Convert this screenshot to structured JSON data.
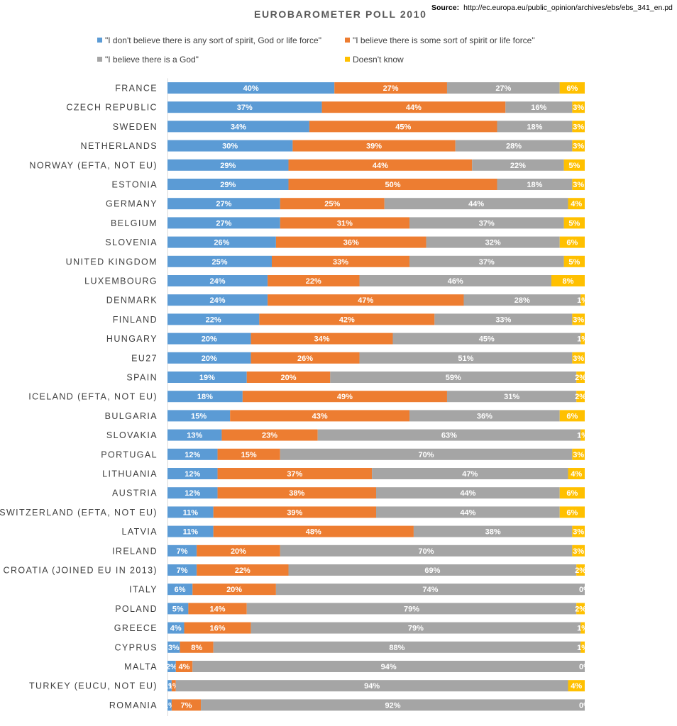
{
  "chart_data": {
    "type": "stacked-bar-horizontal",
    "title": "EUROBAROMETER POLL 2010",
    "source_label": "Source:",
    "source_url": "http://ec.europa.eu/public_opinion/archives/ebs/ebs_341_en.pd",
    "xlim": [
      0,
      100
    ],
    "value_suffix": "%",
    "categories": [
      "FRANCE",
      "CZECH REPUBLIC",
      "SWEDEN",
      "NETHERLANDS",
      "NORWAY (EFTA, NOT EU)",
      "ESTONIA",
      "GERMANY",
      "BELGIUM",
      "SLOVENIA",
      "UNITED KINGDOM",
      "LUXEMBOURG",
      "DENMARK",
      "FINLAND",
      "HUNGARY",
      "EU27",
      "SPAIN",
      "ICELAND (EFTA, NOT EU)",
      "BULGARIA",
      "SLOVAKIA",
      "PORTUGAL",
      "LITHUANIA",
      "AUSTRIA",
      "SWITZERLAND (EFTA, NOT EU)",
      "LATVIA",
      "IRELAND",
      "CROATIA (JOINED EU IN 2013)",
      "ITALY",
      "POLAND",
      "GREECE",
      "CYPRUS",
      "MALTA",
      "TURKEY (EUCU, NOT EU)",
      "ROMANIA"
    ],
    "series": [
      {
        "name": "\"I don't believe there is any sort of spirit, God or life force\"",
        "color": "#5b9bd5",
        "values": [
          40,
          37,
          34,
          30,
          29,
          29,
          27,
          27,
          26,
          25,
          24,
          24,
          22,
          20,
          20,
          19,
          18,
          15,
          13,
          12,
          12,
          12,
          11,
          11,
          7,
          7,
          6,
          5,
          4,
          3,
          2,
          1,
          1
        ]
      },
      {
        "name": "\"I believe there is some sort of spirit or life force\"",
        "color": "#ed7d31",
        "values": [
          27,
          44,
          45,
          39,
          44,
          50,
          25,
          31,
          36,
          33,
          22,
          47,
          42,
          34,
          26,
          20,
          49,
          43,
          23,
          15,
          37,
          38,
          39,
          48,
          20,
          22,
          20,
          14,
          16,
          8,
          4,
          1,
          7
        ]
      },
      {
        "name": "\"I believe there is a God\"",
        "color": "#a5a5a5",
        "values": [
          27,
          16,
          18,
          28,
          22,
          18,
          44,
          37,
          32,
          37,
          46,
          28,
          33,
          45,
          51,
          59,
          31,
          36,
          63,
          70,
          47,
          44,
          44,
          38,
          70,
          69,
          74,
          79,
          79,
          88,
          94,
          94,
          92
        ]
      },
      {
        "name": "Doesn't know",
        "color": "#ffc000",
        "values": [
          6,
          3,
          3,
          3,
          5,
          3,
          4,
          5,
          6,
          5,
          8,
          1,
          3,
          1,
          3,
          2,
          2,
          6,
          1,
          3,
          4,
          6,
          6,
          3,
          3,
          2,
          0,
          2,
          1,
          1,
          0,
          4,
          0
        ]
      }
    ],
    "legend_position": "top"
  }
}
